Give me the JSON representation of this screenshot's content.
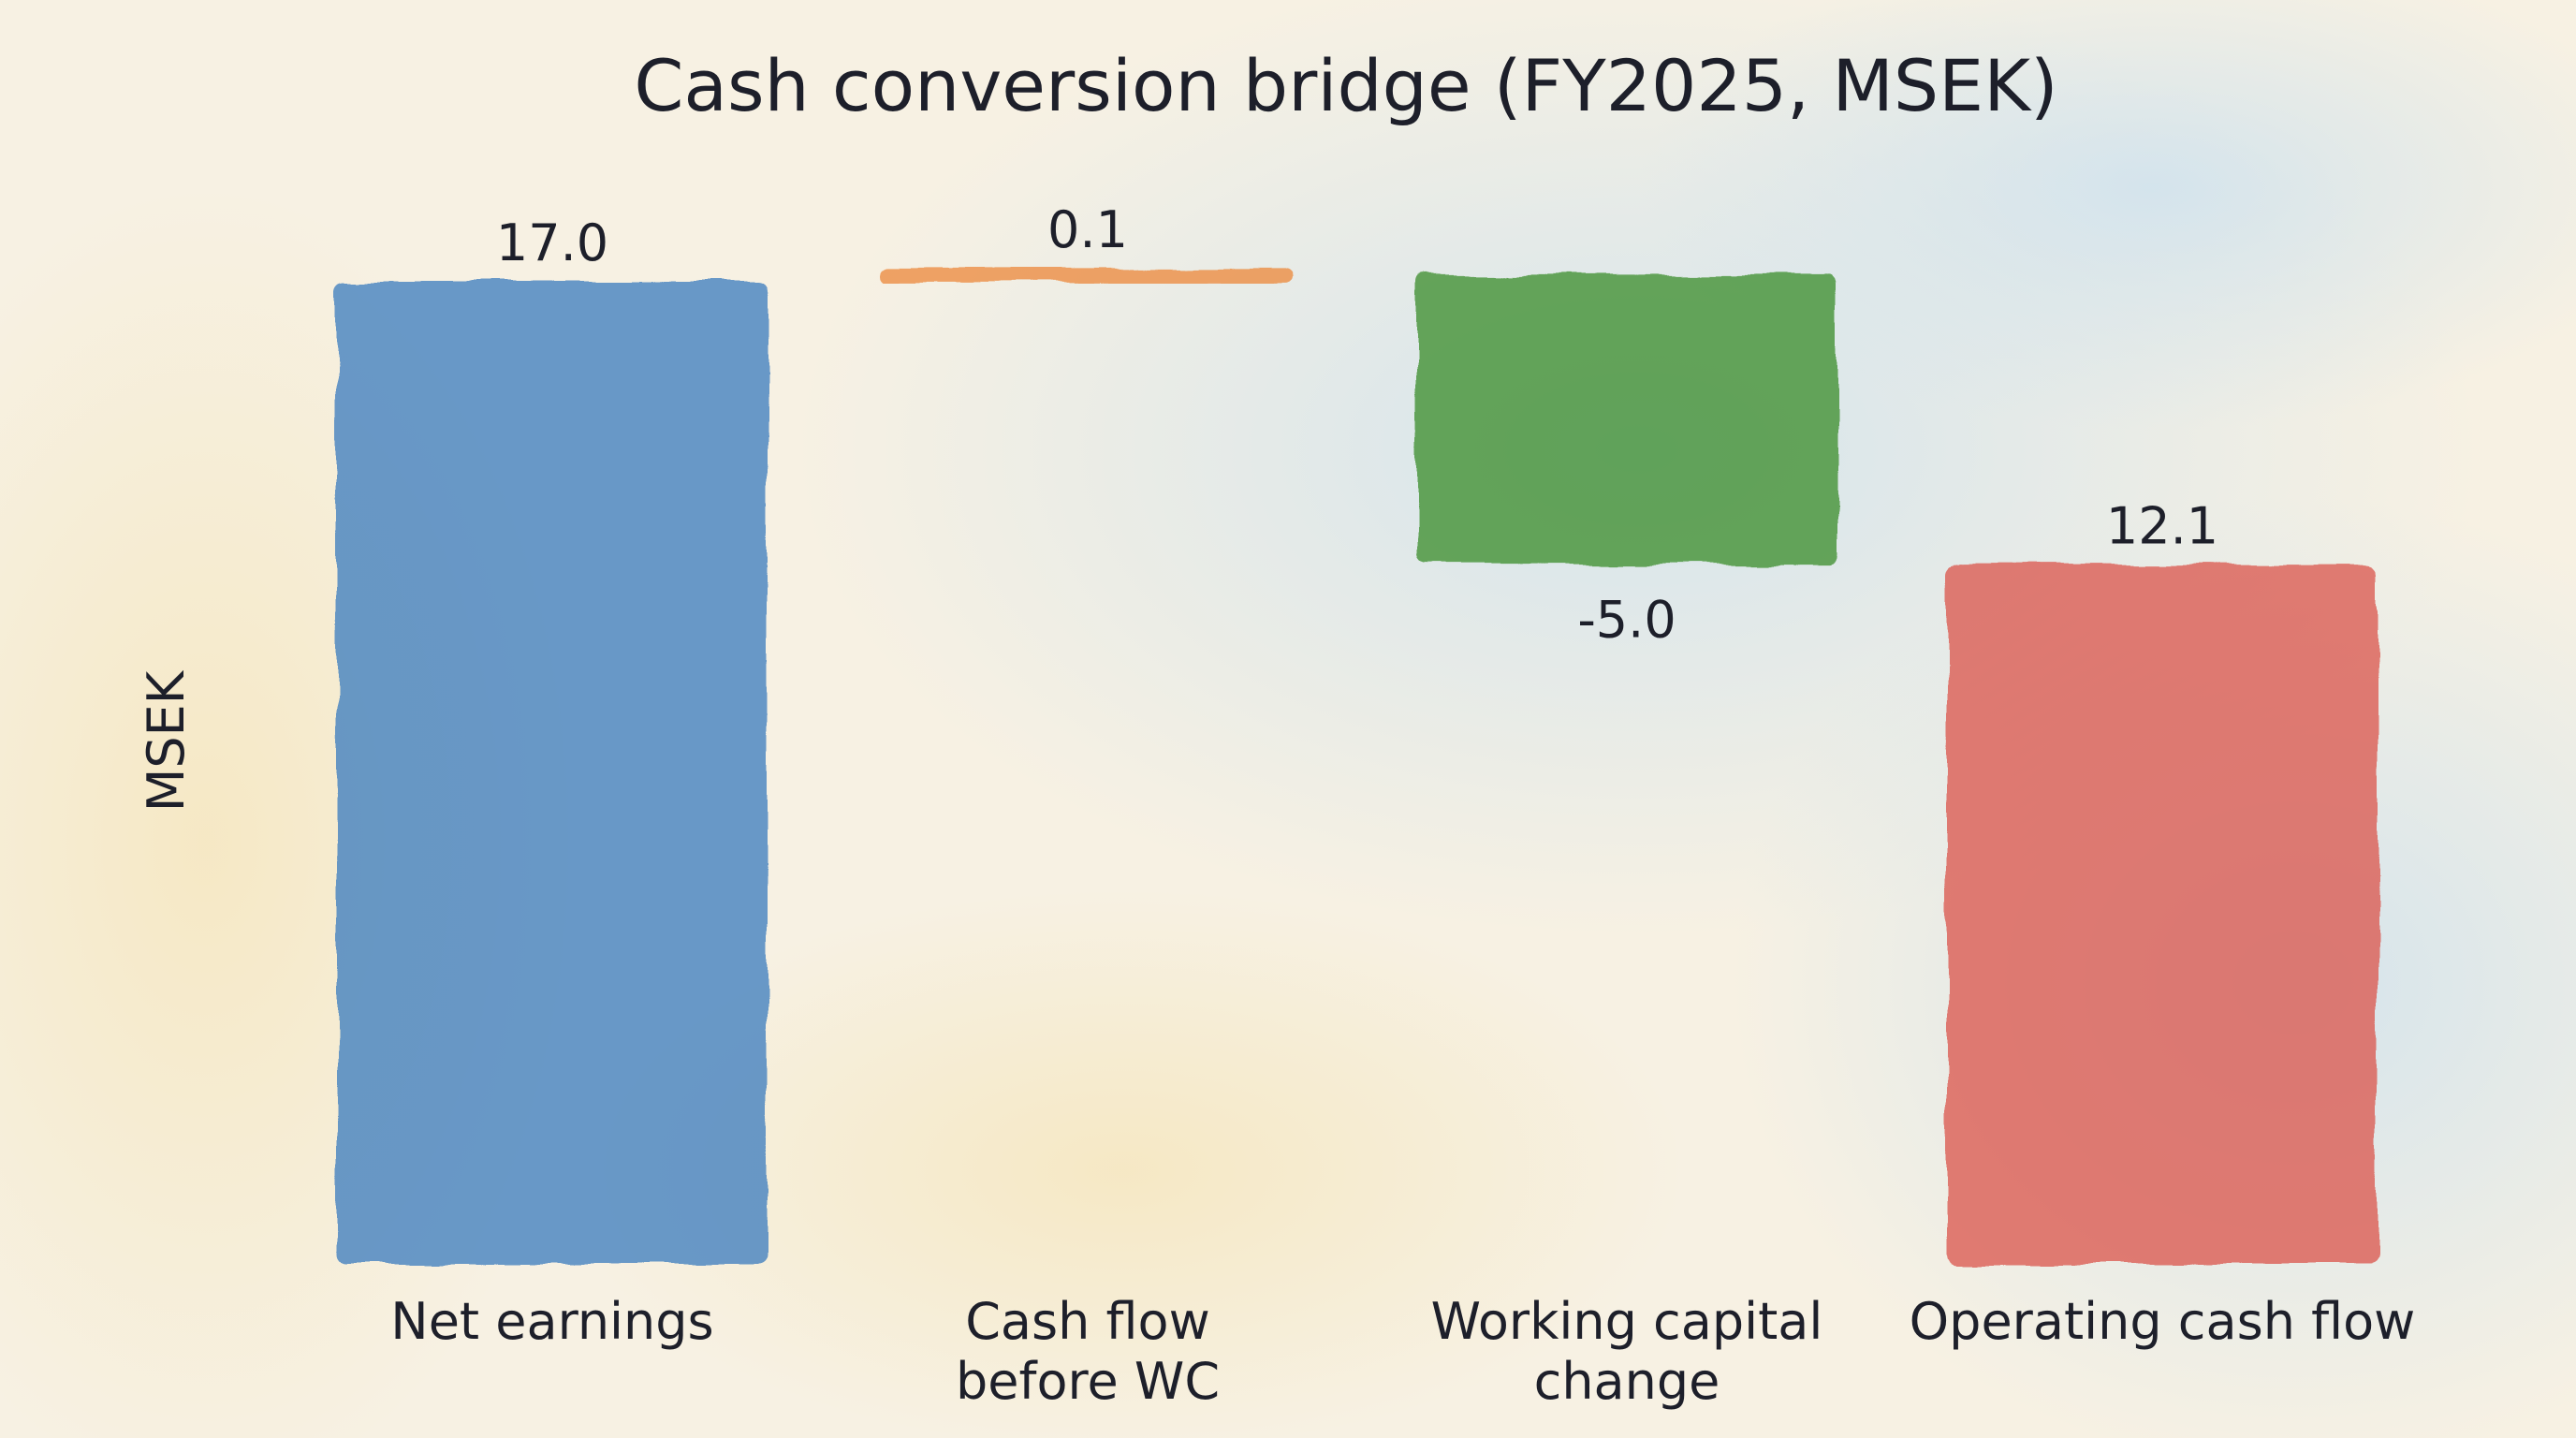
{
  "chart_data": {
    "type": "bar",
    "subtype": "waterfall",
    "title": "Cash conversion bridge (FY2025, MSEK)",
    "ylabel": "MSEK",
    "xlabel": "",
    "categories": [
      [
        "Net earnings"
      ],
      [
        "Cash flow",
        "before WC"
      ],
      [
        "Working capital",
        "change"
      ],
      [
        "Operating cash flow"
      ]
    ],
    "values": [
      17.0,
      0.1,
      -5.0,
      12.1
    ],
    "data_labels": [
      "17.0",
      "0.1",
      "-5.0",
      "12.1"
    ],
    "bar_kind": [
      "total",
      "delta",
      "delta",
      "total"
    ],
    "ylim": [
      0,
      17.3
    ],
    "grid": false,
    "legend": "none",
    "colors": [
      "#3f7fbf",
      "#ec8b3f",
      "#3f8f2f",
      "#db5a4f"
    ]
  }
}
